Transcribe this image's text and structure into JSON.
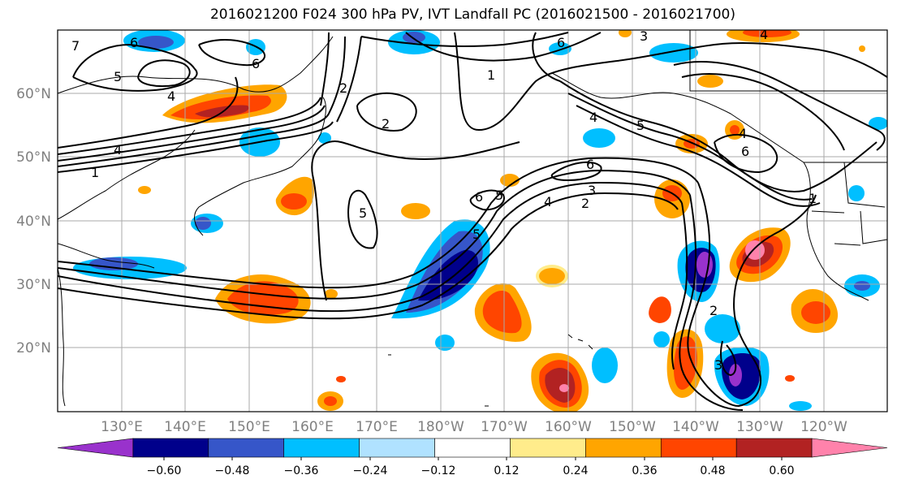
{
  "title": "2016021200 F024 300 hPa PV, IVT Landfall PC (2016021500 - 2016021700)",
  "map": {
    "lat_labels": [
      "60°N",
      "50°N",
      "40°N",
      "30°N",
      "20°N"
    ],
    "lon_labels": [
      "130°E",
      "140°E",
      "150°E",
      "160°E",
      "170°E",
      "180°W",
      "170°W",
      "160°W",
      "150°W",
      "140°W",
      "130°W",
      "120°W"
    ],
    "contour_labels": [
      "7",
      "6",
      "6",
      "6",
      "3",
      "4",
      "4",
      "5",
      "1",
      "2",
      "2",
      "4",
      "5",
      "6",
      "4",
      "1",
      "4",
      "6",
      "5",
      "5",
      "6",
      "4",
      "3",
      "2",
      "1",
      "2",
      "3",
      "5"
    ]
  },
  "colorbar": {
    "colors": [
      "#9932cc",
      "#00008b",
      "#3656c9",
      "#00bfff",
      "#b0e2ff",
      "#ffffff",
      "#ffec8b",
      "#ffa500",
      "#ff4500",
      "#b22222",
      "#ff82ab"
    ],
    "tick_labels": [
      "−0.60",
      "−0.48",
      "−0.36",
      "−0.24",
      "−0.12",
      "0.12",
      "0.24",
      "0.36",
      "0.48",
      "0.60"
    ]
  }
}
